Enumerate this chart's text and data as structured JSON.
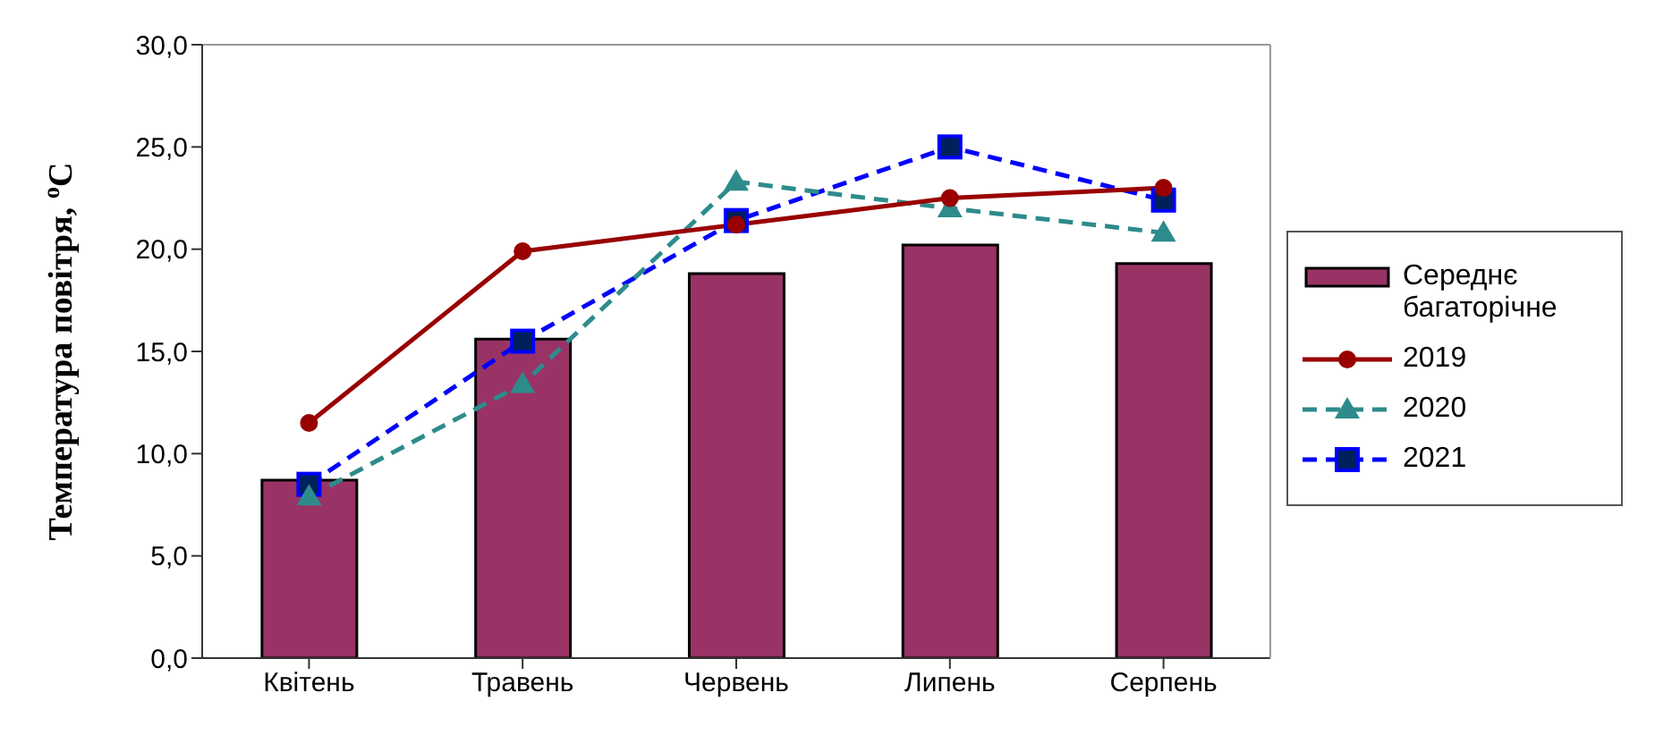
{
  "chart_data": {
    "type": "bar",
    "ylabel": "Температура повітря, $^{o}$C",
    "categories": [
      "Квітень",
      "Травень",
      "Червень",
      "Липень",
      "Серпень"
    ],
    "series": [
      {
        "name": "Середнє багаторічне",
        "color": "#993366",
        "values": [
          8.7,
          15.6,
          18.8,
          20.2,
          19.3
        ]
      },
      {
        "name": "2019",
        "type": "line",
        "color": "#990000",
        "marker": "circle",
        "line_style": "solid",
        "values": [
          11.5,
          19.9,
          21.2,
          22.5,
          23.0
        ]
      },
      {
        "name": "2020",
        "type": "line",
        "color": "#2e8b8b",
        "marker": "triangle",
        "line_style": "dashed",
        "values": [
          7.9,
          13.4,
          23.3,
          22.0,
          20.8
        ]
      },
      {
        "name": "2021",
        "type": "line",
        "color": "#0000ff",
        "marker": "square",
        "line_style": "dashed",
        "values": [
          8.5,
          15.5,
          21.4,
          25.0,
          22.4
        ]
      }
    ],
    "ylim": [
      0,
      30
    ],
    "yticks": [
      {
        "value": 0,
        "label": "0,0"
      },
      {
        "value": 5,
        "label": "5,0"
      },
      {
        "value": 10,
        "label": "10,0"
      },
      {
        "value": 15,
        "label": "15,0"
      },
      {
        "value": 20,
        "label": "20,0"
      },
      {
        "value": 25,
        "label": "25,0"
      },
      {
        "value": 30,
        "label": "30,0"
      }
    ],
    "grid": false,
    "legend": "right"
  }
}
